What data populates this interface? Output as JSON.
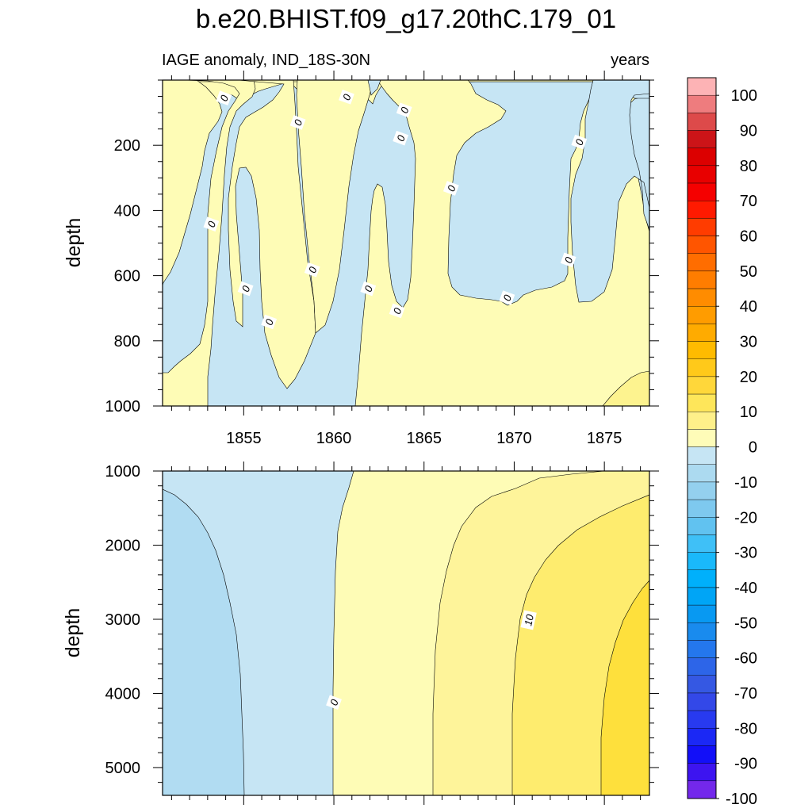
{
  "title": "b.e20.BHIST.f09_g17.20thC.179_01",
  "left_string": "IAGE anomaly, IND_18S-30N",
  "right_string": "years",
  "chart_data": [
    {
      "type": "heatmap",
      "panel": "upper",
      "xlabel": "",
      "ylabel": "depth",
      "xlim": [
        1850.5,
        1877.5
      ],
      "ylim": [
        0,
        1000
      ],
      "y_inverted": true,
      "xticks": [
        1855,
        1860,
        1865,
        1870,
        1875
      ],
      "xtick_labels": [
        "1855",
        "1860",
        "1865",
        "1870",
        "1875"
      ],
      "yticks": [
        200,
        400,
        600,
        800,
        1000
      ],
      "ytick_labels": [
        "200",
        "400",
        "600",
        "800",
        "1000"
      ],
      "contour_labels": [
        {
          "text": "0",
          "x": 1853.9,
          "y": 55
        },
        {
          "text": "0",
          "x": 1858.0,
          "y": 130
        },
        {
          "text": "0",
          "x": 1860.7,
          "y": 52
        },
        {
          "text": "0",
          "x": 1863.9,
          "y": 92
        },
        {
          "text": "0",
          "x": 1863.7,
          "y": 178
        },
        {
          "text": "0",
          "x": 1873.6,
          "y": 190
        },
        {
          "text": "0",
          "x": 1853.2,
          "y": 442
        },
        {
          "text": "0",
          "x": 1866.5,
          "y": 332
        },
        {
          "text": "0",
          "x": 1858.8,
          "y": 582
        },
        {
          "text": "0",
          "x": 1855.1,
          "y": 640
        },
        {
          "text": "0",
          "x": 1861.9,
          "y": 640
        },
        {
          "text": "0",
          "x": 1873.0,
          "y": 552
        },
        {
          "text": "0",
          "x": 1869.6,
          "y": 668
        },
        {
          "text": "0",
          "x": 1856.4,
          "y": 742
        },
        {
          "text": "0",
          "x": 1863.5,
          "y": 708
        }
      ]
    },
    {
      "type": "heatmap",
      "panel": "lower",
      "xlabel": "",
      "ylabel": "depth",
      "xlim": [
        1850.5,
        1877.5
      ],
      "ylim": [
        1000,
        5375
      ],
      "y_inverted": true,
      "xticks": [
        1855,
        1860,
        1865,
        1870,
        1875
      ],
      "yticks": [
        1000,
        2000,
        3000,
        4000,
        5000
      ],
      "ytick_labels": [
        "1000",
        "2000",
        "3000",
        "4000",
        "5000"
      ],
      "contour_labels": [
        {
          "text": "0",
          "x": 1860.0,
          "y": 4120
        },
        {
          "text": "10",
          "x": 1870.8,
          "y": 3010
        }
      ]
    }
  ],
  "colorbar": {
    "labels": [
      "100",
      "90",
      "80",
      "70",
      "60",
      "50",
      "40",
      "30",
      "20",
      "10",
      "0",
      "-10",
      "-20",
      "-30",
      "-40",
      "-50",
      "-60",
      "-70",
      "-80",
      "-90",
      "-100"
    ],
    "colors_top_to_bottom": [
      "#fdb3b5",
      "#ee7c7e",
      "#dd4a4a",
      "#cc1418",
      "#dc0000",
      "#e80000",
      "#f50000",
      "#ff1a00",
      "#ff3c00",
      "#ff5500",
      "#ff6d00",
      "#ff7d00",
      "#ff8c00",
      "#ff9c00",
      "#ffab00",
      "#ffbb00",
      "#ffc91a",
      "#ffd73a",
      "#fee65a",
      "#fef08a",
      "#fefcb8",
      "#c6e5f4",
      "#acdaf0",
      "#94d0ee",
      "#7ec9ef",
      "#61c2f0",
      "#3fc0f7",
      "#1ab9fa",
      "#00b0fb",
      "#00a5f6",
      "#0899f2",
      "#198bee",
      "#2477ed",
      "#2d65e8",
      "#3558e3",
      "#3348e8",
      "#283af0",
      "#1b28f5",
      "#120ff8",
      "#3d14f0",
      "#7328eb"
    ]
  },
  "colors": {
    "neutral_pos": "#fefcb6",
    "light_neg": "#c6e5f4",
    "mid_neg": "#b1dcf2",
    "pos_10": "#fef49a",
    "pos_15": "#feec6e",
    "pos_20": "#fee03c",
    "upper_pos_5": "#fdf38f"
  }
}
